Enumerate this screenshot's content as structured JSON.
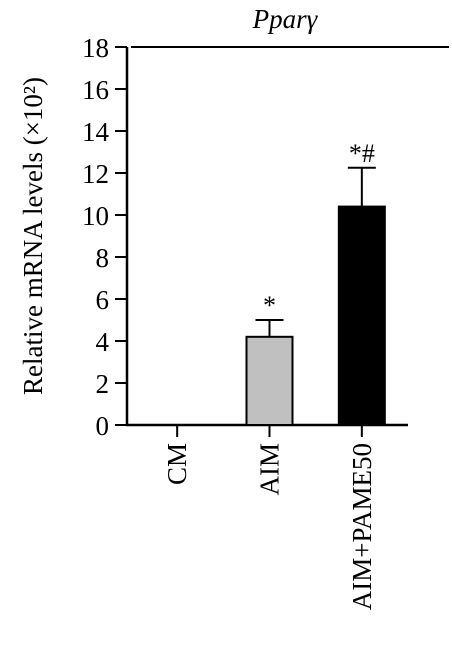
{
  "chart_data": {
    "type": "bar",
    "title": "Pparγ",
    "ylabel": "Relative mRNA levels (×10²)",
    "xlabel": "",
    "ylim": [
      0,
      18
    ],
    "yticks": [
      "0",
      "2",
      "4",
      "6",
      "8",
      "10",
      "12",
      "14",
      "16",
      "18"
    ],
    "categories": [
      "CM",
      "AIM",
      "AIM+PAME50"
    ],
    "values": [
      0,
      4.2,
      10.4
    ],
    "errors": [
      0,
      0.8,
      1.85
    ],
    "annotations": [
      "",
      "*",
      "*#"
    ],
    "colors": [
      "#ffffff",
      "#c0c0c0",
      "#000000"
    ]
  }
}
